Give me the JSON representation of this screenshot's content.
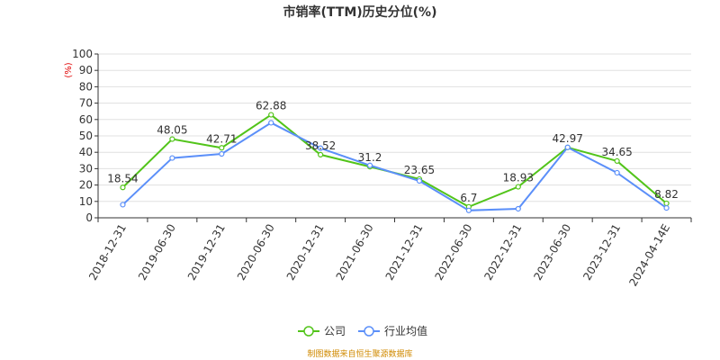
{
  "chart_data": {
    "type": "line",
    "title": "市销率(TTM)历史分位(%)",
    "y_unit": "(%)",
    "ylim": [
      0,
      100
    ],
    "y_ticks": [
      0,
      10,
      20,
      30,
      40,
      50,
      60,
      70,
      80,
      90,
      100
    ],
    "categories": [
      "2018-12-31",
      "2019-06-30",
      "2019-12-31",
      "2020-06-30",
      "2020-12-31",
      "2021-06-30",
      "2021-12-31",
      "2022-06-30",
      "2022-12-31",
      "2023-06-30",
      "2023-12-31",
      "2024-04-14E"
    ],
    "grid": "horizontal",
    "legend_position": "bottom-center",
    "series": [
      {
        "name": "公司",
        "color": "#52c41a",
        "values": [
          18.54,
          48.05,
          42.71,
          62.88,
          38.52,
          31.2,
          23.65,
          6.7,
          18.93,
          42.97,
          34.65,
          8.82
        ],
        "labels": [
          "18.54",
          "48.05",
          "42.71",
          "62.88",
          "38.52",
          "31.2",
          "23.65",
          "6.7",
          "18.93",
          "42.97",
          "34.65",
          "8.82"
        ]
      },
      {
        "name": "行业均值",
        "color": "#5b8ff9",
        "values": [
          8,
          36.5,
          39,
          58,
          42.5,
          32,
          22.5,
          4.5,
          5.5,
          43,
          27.5,
          6
        ]
      }
    ],
    "source": "制图数据来自恒生聚源数据库"
  }
}
